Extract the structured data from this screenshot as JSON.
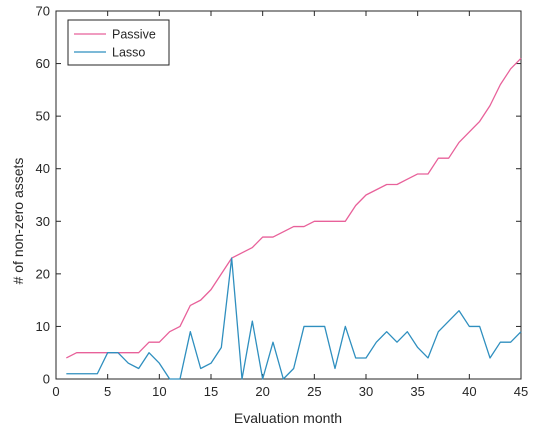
{
  "chart_data": {
    "type": "line",
    "title": "",
    "xlabel": "Evaluation month",
    "ylabel": "# of non-zero assets",
    "xlim": [
      0,
      45
    ],
    "ylim": [
      0,
      70
    ],
    "xticks": [
      0,
      5,
      10,
      15,
      20,
      25,
      30,
      35,
      40,
      45
    ],
    "yticks": [
      0,
      10,
      20,
      30,
      40,
      50,
      60,
      70
    ],
    "grid": false,
    "legend_position": "top-left",
    "x": [
      1,
      2,
      3,
      4,
      5,
      6,
      7,
      8,
      9,
      10,
      11,
      12,
      13,
      14,
      15,
      16,
      17,
      18,
      19,
      20,
      21,
      22,
      23,
      24,
      25,
      26,
      27,
      28,
      29,
      30,
      31,
      32,
      33,
      34,
      35,
      36,
      37,
      38,
      39,
      40,
      41,
      42,
      43,
      44,
      45
    ],
    "series": [
      {
        "name": "Passive",
        "color": "#e8619a",
        "values": [
          4,
          5,
          5,
          5,
          5,
          5,
          5,
          5,
          7,
          7,
          9,
          10,
          14,
          15,
          17,
          20,
          23,
          24,
          25,
          27,
          27,
          28,
          29,
          29,
          30,
          30,
          30,
          30,
          33,
          35,
          36,
          37,
          37,
          38,
          39,
          39,
          42,
          42,
          45,
          47,
          49,
          52,
          56,
          59,
          61
        ]
      },
      {
        "name": "Lasso",
        "color": "#2f8fbf",
        "values": [
          1,
          1,
          1,
          1,
          5,
          5,
          3,
          2,
          5,
          3,
          0,
          0,
          9,
          2,
          3,
          6,
          23,
          0,
          11,
          0,
          7,
          0,
          2,
          10,
          10,
          10,
          2,
          10,
          4,
          4,
          7,
          9,
          7,
          9,
          6,
          4,
          9,
          11,
          13,
          10,
          10,
          4,
          7,
          7,
          9
        ]
      }
    ]
  }
}
